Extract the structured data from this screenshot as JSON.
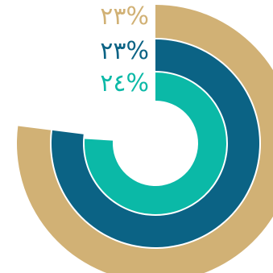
{
  "chart_data": {
    "type": "radial-bar",
    "title": "",
    "unit": "%",
    "series": [
      {
        "value_label": "٢٣%",
        "value": 23,
        "arc_fraction": 0.77,
        "color": "#D1B175"
      },
      {
        "value_label": "٢٣%",
        "value": 23,
        "arc_fraction": 0.77,
        "color": "#0B6385"
      },
      {
        "value_label": "٢٤%",
        "value": 24,
        "arc_fraction": 0.76,
        "color": "#0BB9A7"
      }
    ]
  }
}
